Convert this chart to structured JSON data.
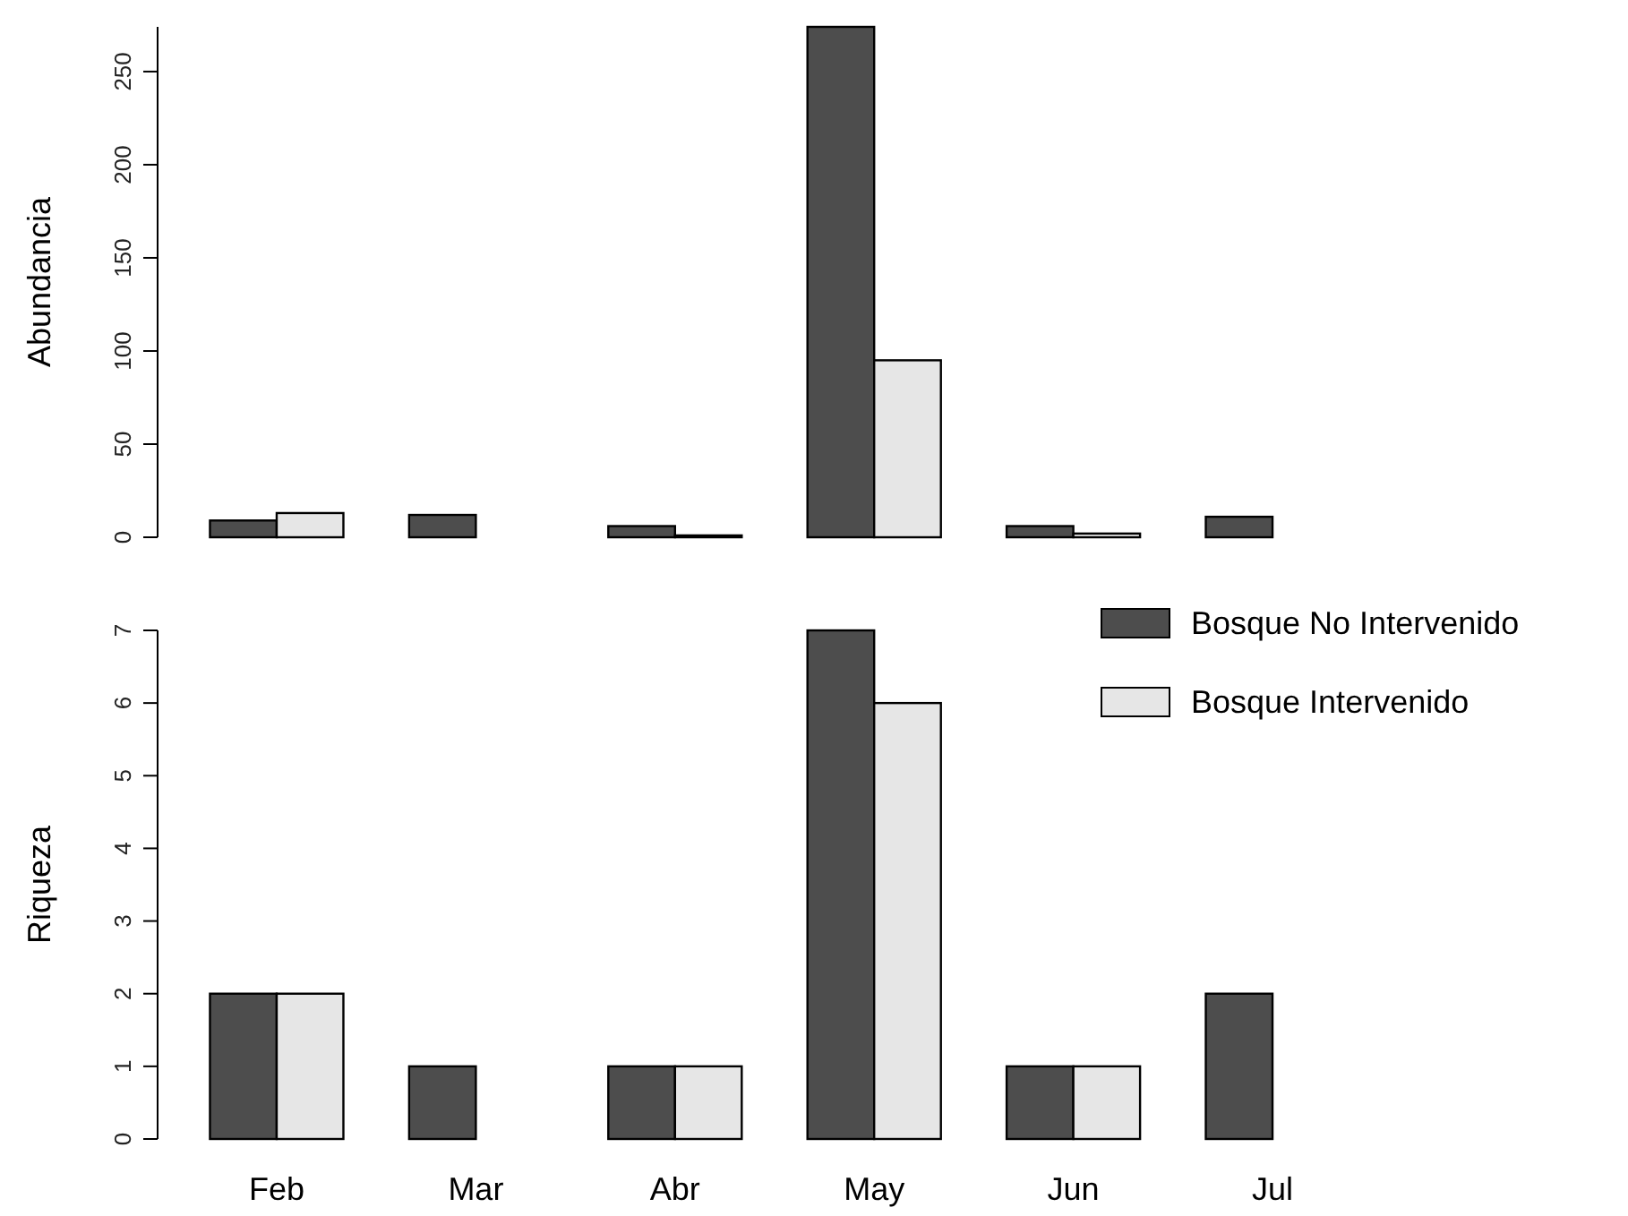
{
  "chart_data": [
    {
      "type": "bar",
      "ylabel": "Abundancia",
      "categories": [
        "Feb",
        "Mar",
        "Abr",
        "May",
        "Jun",
        "Jul"
      ],
      "tick_labels": "y",
      "ylim": [
        0,
        274
      ],
      "yticks": [
        0,
        50,
        100,
        150,
        200,
        250
      ],
      "grid": false,
      "legend": false,
      "series": [
        {
          "color": "#4d4d4d",
          "values": [
            9,
            12,
            6,
            274,
            6,
            11
          ]
        },
        {
          "color": "#e6e6e6",
          "values": [
            13,
            0,
            1,
            95,
            2,
            0
          ]
        }
      ]
    },
    {
      "type": "bar",
      "ylabel": "Riqueza",
      "categories": [
        "Feb",
        "Mar",
        "Abr",
        "May",
        "Jun",
        "Jul"
      ],
      "ylim": [
        0,
        7
      ],
      "yticks": [
        0,
        1,
        2,
        3,
        4,
        5,
        6,
        7
      ],
      "grid": false,
      "legend": "top right",
      "series": [
        {
          "name": "Bosque No Intervenido",
          "color": "#4d4d4d",
          "values": [
            2,
            1,
            1,
            7,
            1,
            2
          ]
        },
        {
          "name": "Bosque Intervenido",
          "color": "#e6e6e6",
          "values": [
            2,
            0,
            1,
            6,
            1,
            0
          ]
        }
      ]
    }
  ]
}
